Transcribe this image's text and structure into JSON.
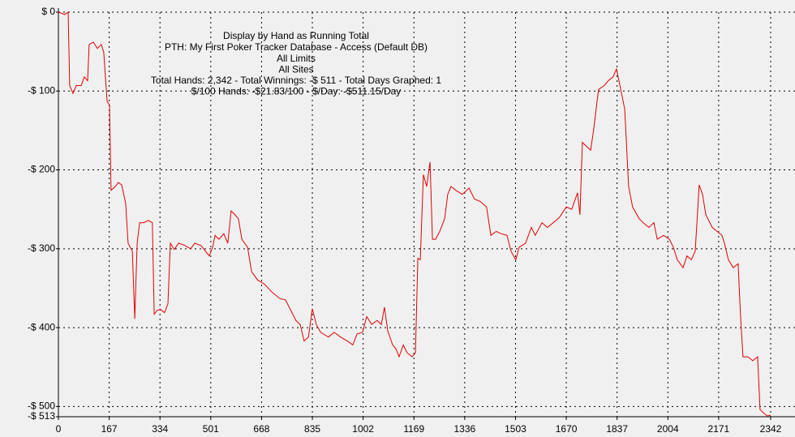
{
  "chart_data": {
    "type": "line",
    "title": "Display by Hand as Running Total",
    "subtitles": [
      "PTH: My First Poker Tracker Database - Access (Default DB)",
      "All Limits",
      "All Sites",
      "Total Hands: 2,342 - Total Winnings: -$ 511 - Total Days Graphed: 1",
      "$/100 Hands: -$21.83/100 - $/Day: -$511.15/Day"
    ],
    "color": "#e00000",
    "grid": true,
    "xlim": [
      0,
      2342
    ],
    "xticks": [
      0,
      167,
      334,
      501,
      668,
      835,
      1002,
      1169,
      1336,
      1503,
      1670,
      1837,
      2004,
      2171,
      2342
    ],
    "ylim": [
      -513,
      0
    ],
    "yticks": [
      {
        "value": 0,
        "label": "$ 0"
      },
      {
        "value": -100,
        "label": "-$ 100"
      },
      {
        "value": -200,
        "label": "-$ 200"
      },
      {
        "value": -300,
        "label": "-$ 300"
      },
      {
        "value": -400,
        "label": "-$ 400"
      },
      {
        "value": -500,
        "label": "-$ 500"
      },
      {
        "value": -513,
        "label": "-$ 513"
      }
    ],
    "x": [
      0,
      21,
      32,
      37,
      48,
      59,
      75,
      85,
      96,
      101,
      115,
      128,
      141,
      149,
      160,
      168,
      173,
      187,
      197,
      208,
      221,
      229,
      243,
      251,
      259,
      267,
      280,
      296,
      309,
      315,
      325,
      336,
      349,
      360,
      368,
      381,
      395,
      411,
      435,
      448,
      469,
      496,
      507,
      515,
      528,
      544,
      557,
      568,
      581,
      592,
      603,
      622,
      635,
      656,
      678,
      702,
      728,
      747,
      768,
      781,
      795,
      808,
      822,
      835,
      848,
      862,
      888,
      907,
      928,
      950,
      968,
      982,
      1000,
      1014,
      1030,
      1048,
      1062,
      1072,
      1083,
      1099,
      1110,
      1120,
      1134,
      1147,
      1163,
      1174,
      1182,
      1190,
      1200,
      1211,
      1222,
      1230,
      1240,
      1254,
      1270,
      1280,
      1291,
      1307,
      1328,
      1350,
      1368,
      1387,
      1408,
      1422,
      1440,
      1456,
      1475,
      1488,
      1504,
      1515,
      1536,
      1555,
      1568,
      1590,
      1608,
      1627,
      1648,
      1670,
      1688,
      1707,
      1715,
      1723,
      1736,
      1750,
      1760,
      1776,
      1795,
      1808,
      1824,
      1835,
      1849,
      1862,
      1875,
      1888,
      1910,
      1923,
      1942,
      1958,
      1969,
      1990,
      2009,
      2022,
      2035,
      2054,
      2067,
      2081,
      2094,
      2107,
      2118,
      2129,
      2150,
      2166,
      2182,
      2190,
      2203,
      2219,
      2235,
      2243,
      2251,
      2267,
      2283,
      2299,
      2307,
      2321,
      2331,
      2342
    ],
    "values": [
      0,
      -3,
      0,
      -93,
      -103,
      -93,
      -93,
      -82,
      -87,
      -41,
      -38,
      -46,
      -41,
      -51,
      -113,
      -118,
      -226,
      -221,
      -216,
      -219,
      -242,
      -293,
      -303,
      -389,
      -293,
      -267,
      -267,
      -264,
      -267,
      -383,
      -378,
      -377,
      -381,
      -370,
      -293,
      -301,
      -293,
      -295,
      -300,
      -293,
      -296,
      -309,
      -298,
      -283,
      -288,
      -281,
      -293,
      -252,
      -257,
      -262,
      -288,
      -298,
      -329,
      -340,
      -345,
      -355,
      -363,
      -365,
      -381,
      -391,
      -396,
      -417,
      -412,
      -376,
      -396,
      -406,
      -412,
      -406,
      -412,
      -417,
      -422,
      -408,
      -406,
      -386,
      -396,
      -391,
      -396,
      -374,
      -404,
      -422,
      -427,
      -437,
      -422,
      -432,
      -437,
      -432,
      -312,
      -314,
      -206,
      -221,
      -190,
      -288,
      -288,
      -278,
      -262,
      -231,
      -221,
      -226,
      -231,
      -223,
      -237,
      -240,
      -247,
      -283,
      -278,
      -281,
      -283,
      -303,
      -314,
      -298,
      -293,
      -273,
      -283,
      -267,
      -273,
      -267,
      -260,
      -247,
      -250,
      -229,
      -257,
      -165,
      -170,
      -175,
      -149,
      -98,
      -93,
      -87,
      -82,
      -72,
      -98,
      -123,
      -221,
      -247,
      -262,
      -267,
      -273,
      -267,
      -288,
      -283,
      -288,
      -298,
      -314,
      -324,
      -309,
      -314,
      -303,
      -219,
      -231,
      -257,
      -273,
      -278,
      -283,
      -293,
      -314,
      -324,
      -319,
      -386,
      -437,
      -437,
      -442,
      -437,
      -504,
      -509,
      -512,
      -511
    ]
  }
}
